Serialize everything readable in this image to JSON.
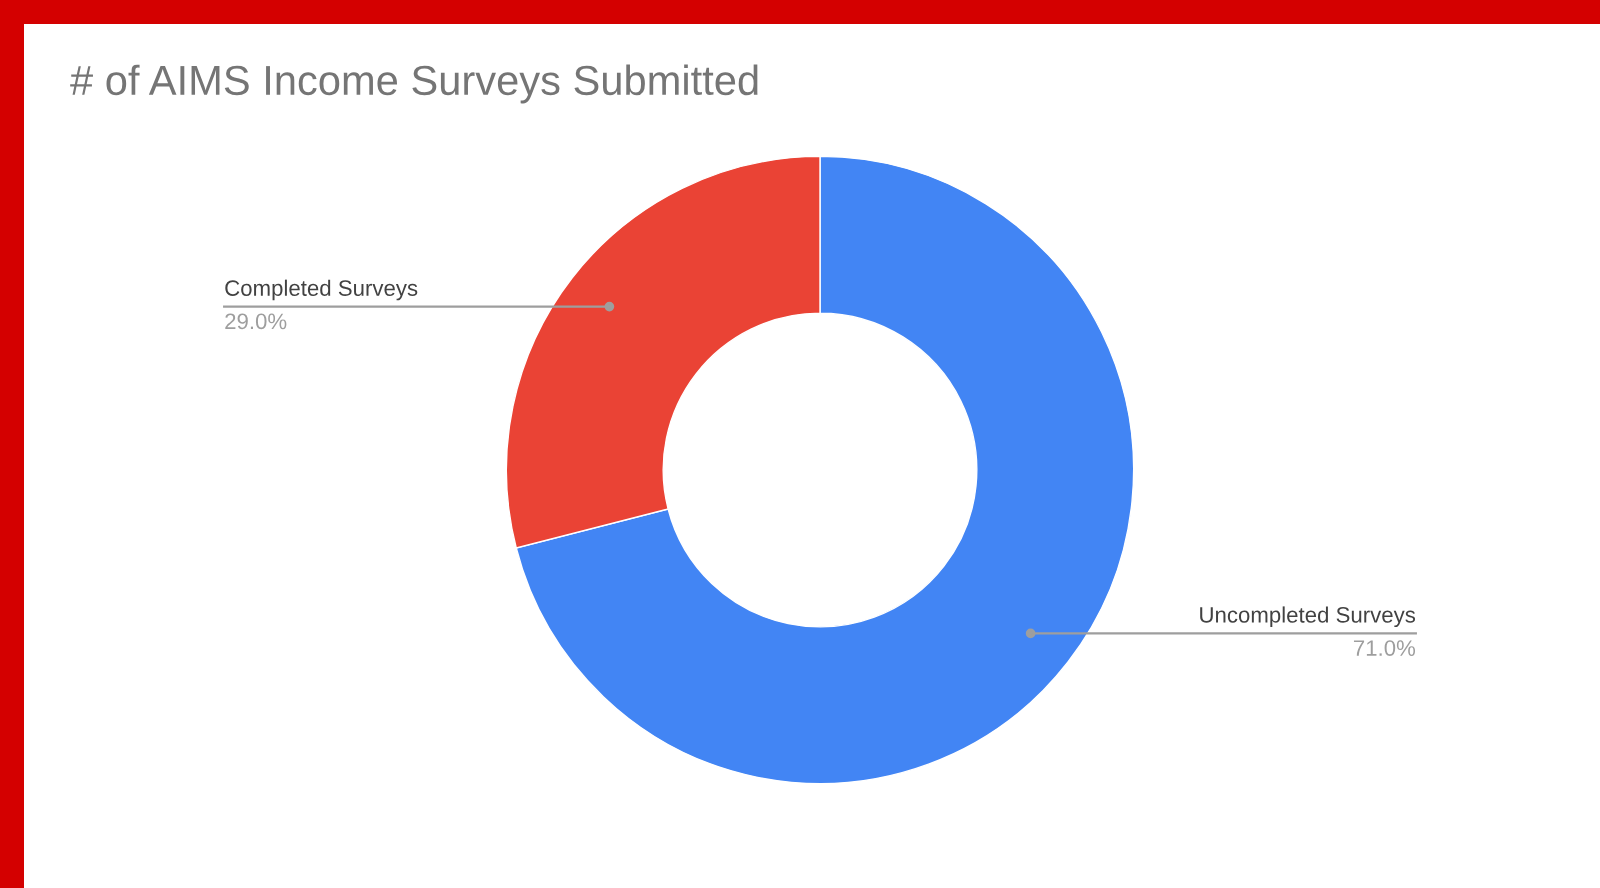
{
  "chart_data": {
    "type": "donut",
    "title": "# of AIMS Income Surveys Submitted",
    "categories": [
      "Uncompleted Surveys",
      "Completed Surveys"
    ],
    "values": [
      71,
      29
    ],
    "colors": [
      "#4285f4",
      "#ea4335"
    ],
    "value_labels": [
      "71.0%",
      "29.0%"
    ],
    "legend": false
  }
}
